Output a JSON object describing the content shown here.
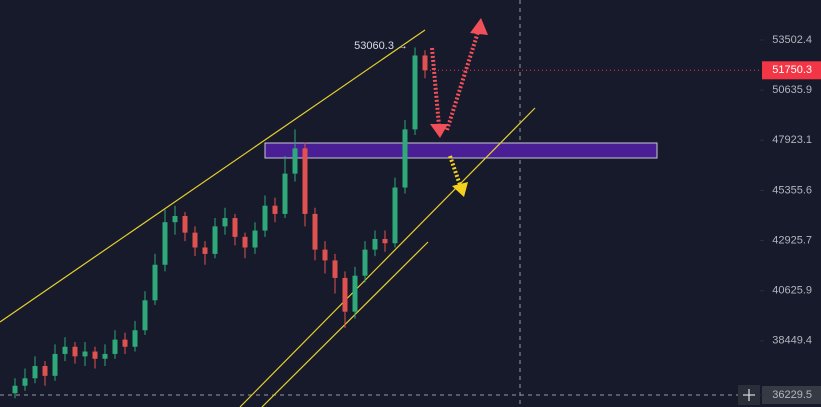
{
  "chart_data": {
    "type": "candlestick",
    "open": [
      36300,
      36600,
      36900,
      37400,
      37000,
      37900,
      38200,
      37800,
      38000,
      37700,
      37900,
      38500,
      38200,
      38900,
      40200,
      41800,
      43800,
      44100,
      43300,
      42600,
      42300,
      43600,
      44000,
      43100,
      42600,
      43400,
      44600,
      44200,
      46200,
      47500,
      44200,
      42500,
      42000,
      41200,
      39700,
      41300,
      42500,
      43000,
      42800,
      45500,
      48500,
      52600
    ],
    "high": [
      36900,
      37300,
      37800,
      37600,
      38300,
      38600,
      38400,
      38400,
      38200,
      38300,
      38900,
      38800,
      39300,
      40600,
      42300,
      44400,
      44600,
      44300,
      43600,
      42900,
      44000,
      44500,
      44200,
      43300,
      43800,
      45100,
      45000,
      47100,
      48500,
      47800,
      44500,
      42900,
      42300,
      41500,
      41700,
      42900,
      43400,
      43400,
      46000,
      49000,
      53060,
      52900
    ],
    "low": [
      36100,
      36400,
      36700,
      36600,
      36800,
      37600,
      37500,
      37400,
      37300,
      37400,
      37700,
      37900,
      38000,
      38700,
      40000,
      41500,
      43200,
      42900,
      42200,
      41800,
      42100,
      43200,
      42700,
      42100,
      42300,
      43100,
      43800,
      44000,
      45800,
      43600,
      42000,
      41400,
      40500,
      39000,
      39400,
      41000,
      42200,
      42400,
      42600,
      45200,
      48200,
      51300
    ],
    "close": [
      36600,
      36900,
      37400,
      37000,
      37900,
      38200,
      37800,
      38000,
      37700,
      37900,
      38500,
      38200,
      38900,
      40200,
      41800,
      43800,
      44100,
      43300,
      42600,
      42300,
      43600,
      44000,
      43100,
      42600,
      43400,
      44600,
      44200,
      46200,
      47500,
      44200,
      42500,
      42000,
      41200,
      39700,
      41300,
      42500,
      43000,
      42800,
      45500,
      48500,
      52600,
      51750.3
    ],
    "up_color": "#2fa87a",
    "down_color": "#e0524f",
    "ylim": [
      35755,
      55904
    ],
    "log_scale": true,
    "yticks": [
      53502.4,
      50635.9,
      47923.1,
      45355.6,
      42925.7,
      40625.9,
      38449.4,
      36229.5
    ],
    "last_price": 51750.3,
    "last_price_color": "#f23645",
    "annotation": "53060.3 →"
  }
}
